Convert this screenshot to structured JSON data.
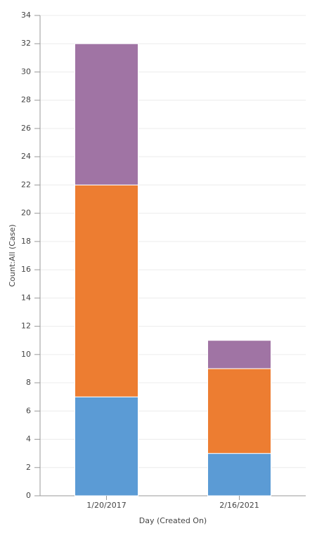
{
  "chart_data": {
    "type": "stacked_bar",
    "x_label": "Day (Created On)",
    "y_label": "Count:All (Case)",
    "categories": [
      "1/20/2017",
      "2/16/2021"
    ],
    "series": [
      {
        "color": "#5b9bd5",
        "values": [
          7,
          3
        ]
      },
      {
        "color": "#ed7d31",
        "values": [
          15,
          6
        ]
      },
      {
        "color": "#a074a4",
        "values": [
          10,
          2
        ]
      }
    ],
    "ylim": [
      0,
      34
    ],
    "yticks": [
      0,
      2,
      4,
      6,
      8,
      10,
      12,
      14,
      16,
      18,
      20,
      22,
      24,
      26,
      28,
      30,
      32,
      34
    ],
    "grid": true
  }
}
